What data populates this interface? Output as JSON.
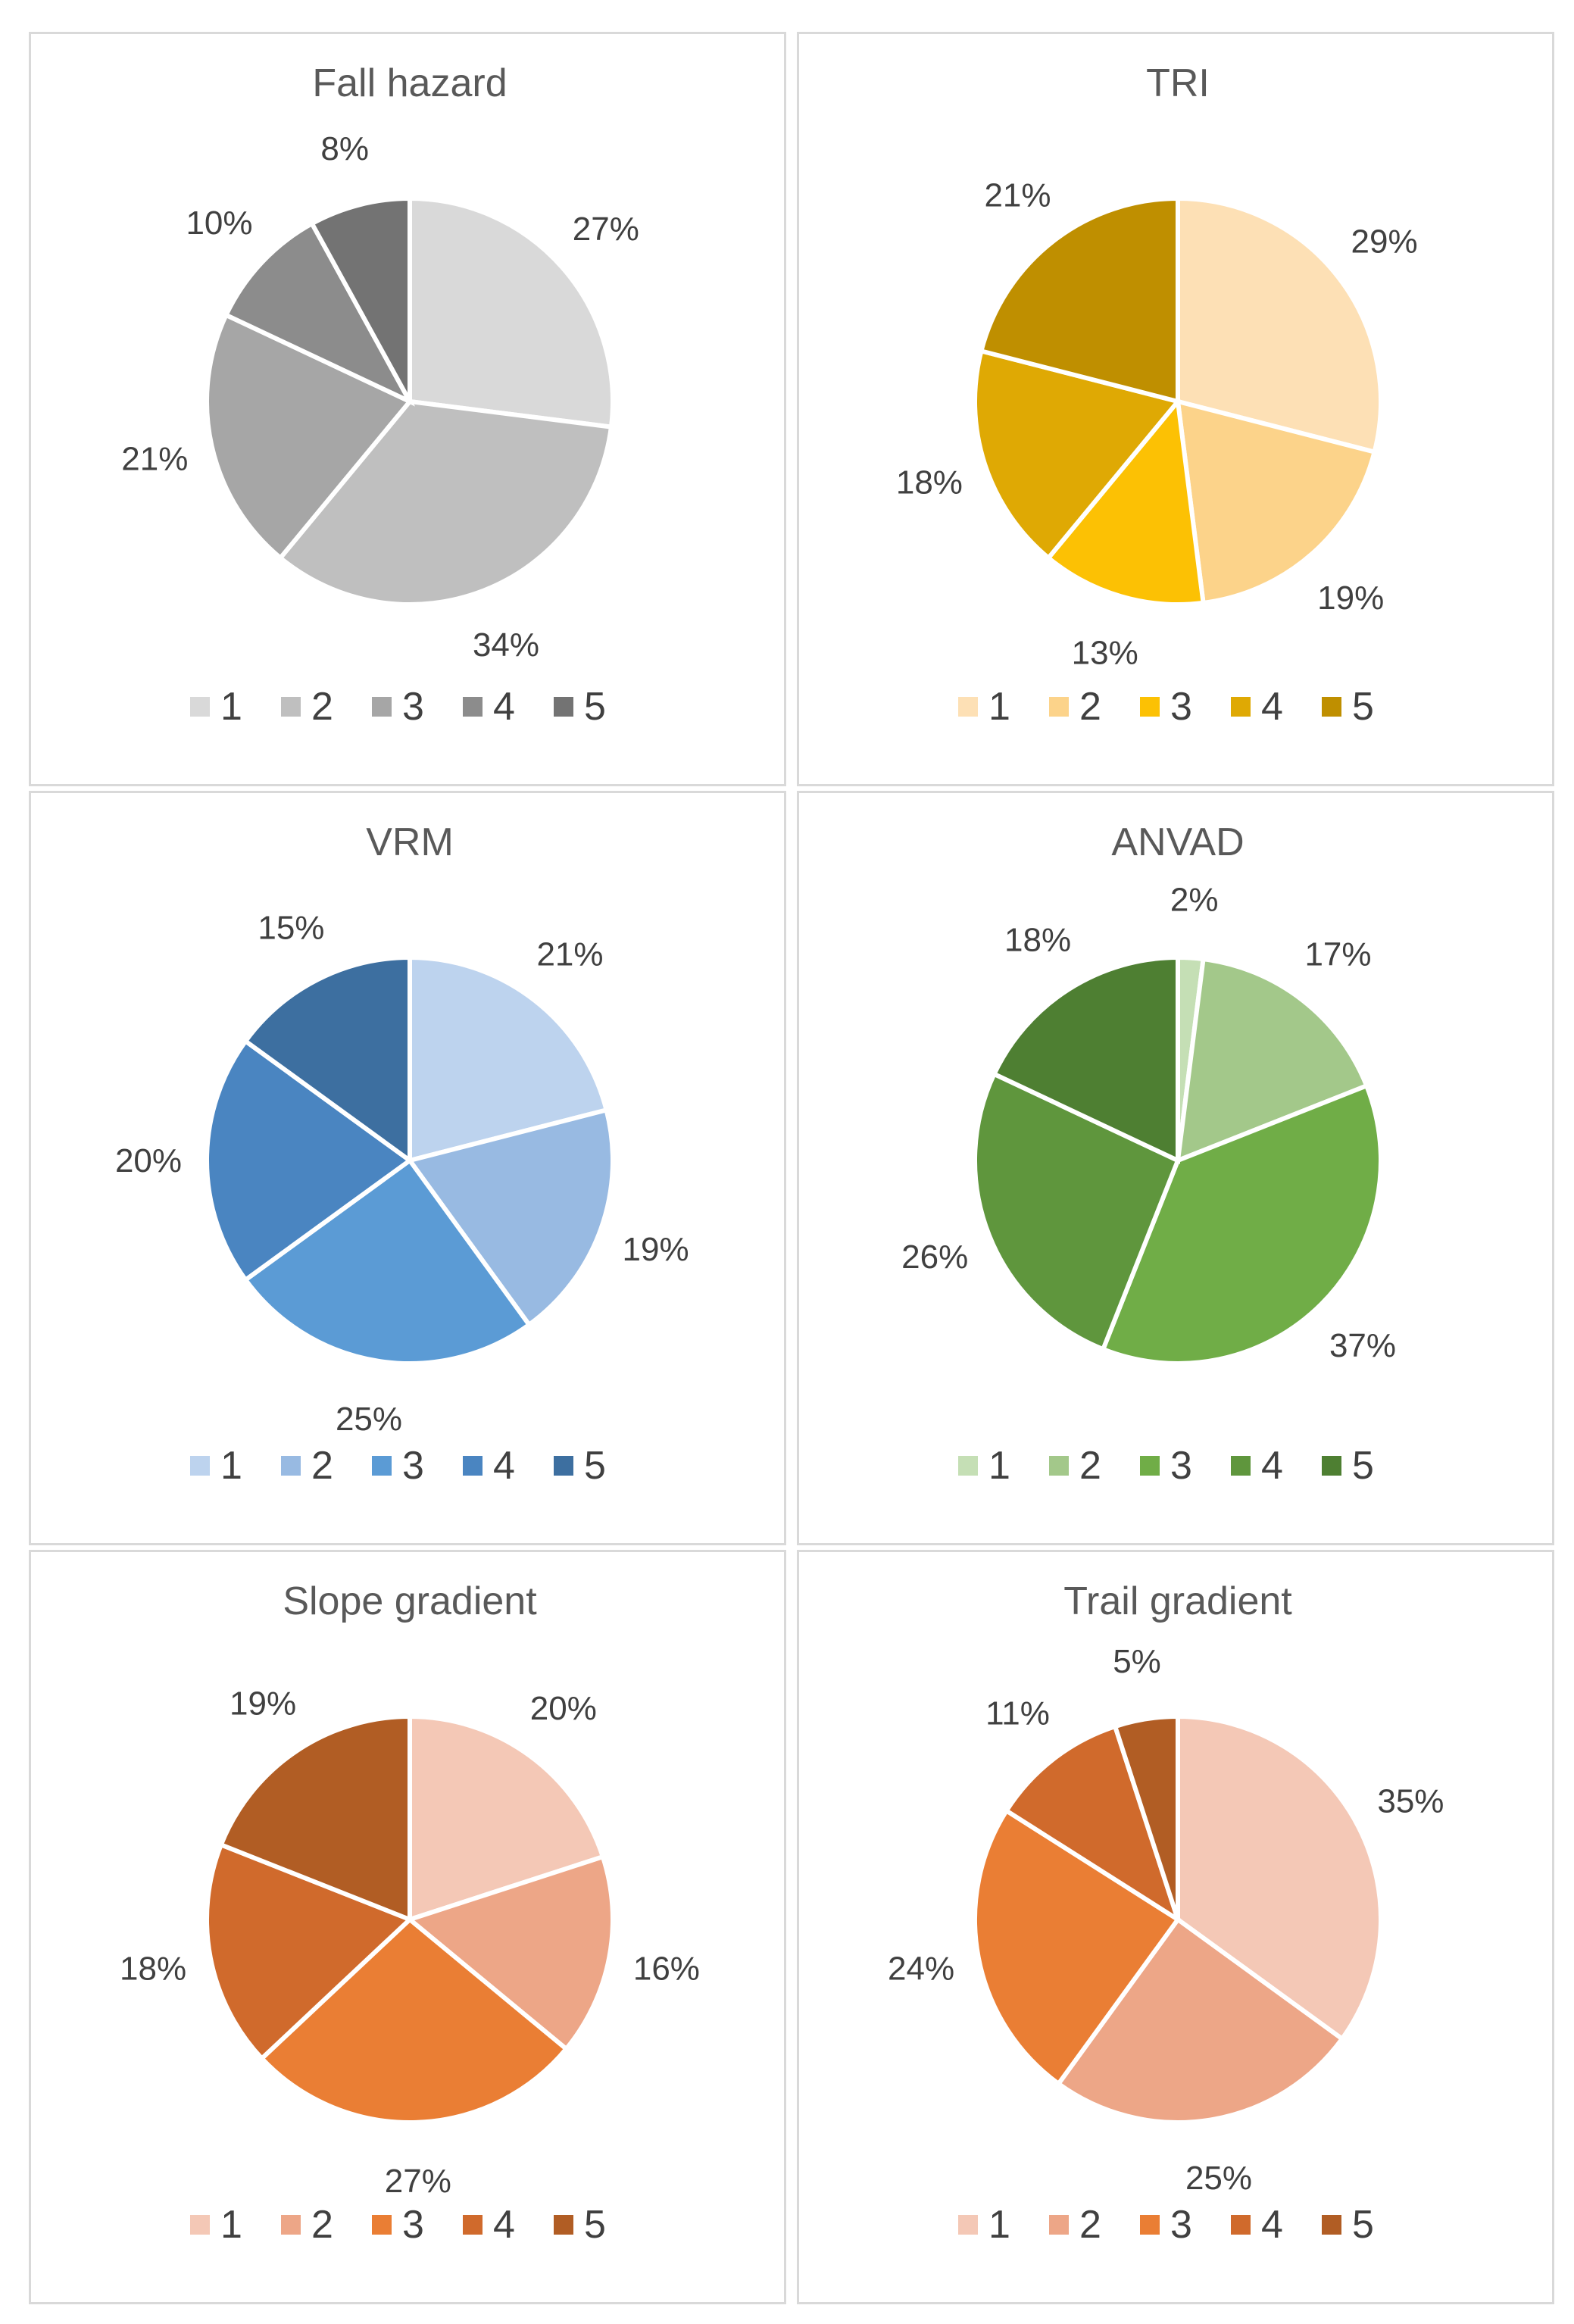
{
  "chart_data": [
    {
      "type": "pie",
      "title": "Fall hazard",
      "categories": [
        "1",
        "2",
        "3",
        "4",
        "5"
      ],
      "values": [
        27,
        34,
        21,
        10,
        8
      ],
      "labels": [
        "27%",
        "34%",
        "21%",
        "10%",
        "8%"
      ],
      "colors": [
        "#D9D9D9",
        "#BFBFBF",
        "#A6A6A6",
        "#8C8C8C",
        "#737373"
      ],
      "legend_position": "bottom"
    },
    {
      "type": "pie",
      "title": "TRI",
      "categories": [
        "1",
        "2",
        "3",
        "4",
        "5"
      ],
      "values": [
        29,
        19,
        13,
        18,
        21
      ],
      "labels": [
        "29%",
        "19%",
        "13%",
        "18%",
        "21%"
      ],
      "colors": [
        "#FDE0B5",
        "#FCD38A",
        "#FCC104",
        "#DFA904",
        "#BF8F00"
      ],
      "legend_position": "bottom"
    },
    {
      "type": "pie",
      "title": "VRM",
      "categories": [
        "1",
        "2",
        "3",
        "4",
        "5"
      ],
      "values": [
        21,
        19,
        25,
        20,
        15
      ],
      "labels": [
        "21%",
        "19%",
        "25%",
        "20%",
        "15%"
      ],
      "colors": [
        "#BDD3EE",
        "#98BAE2",
        "#5B9BD5",
        "#4A85C1",
        "#3D6FA0"
      ],
      "legend_position": "bottom"
    },
    {
      "type": "pie",
      "title": "ANVAD",
      "categories": [
        "1",
        "2",
        "3",
        "4",
        "5"
      ],
      "values": [
        2,
        17,
        37,
        26,
        18
      ],
      "labels": [
        "2%",
        "17%",
        "37%",
        "26%",
        "18%"
      ],
      "colors": [
        "#C5DFB5",
        "#A3C88A",
        "#70AD47",
        "#5F963D",
        "#4E7F32"
      ],
      "legend_position": "bottom"
    },
    {
      "type": "pie",
      "title": "Slope gradient",
      "categories": [
        "1",
        "2",
        "3",
        "4",
        "5"
      ],
      "values": [
        20,
        16,
        27,
        18,
        19
      ],
      "labels": [
        "20%",
        "16%",
        "27%",
        "18%",
        "19%"
      ],
      "colors": [
        "#F4C8B6",
        "#EDA687",
        "#EA7E34",
        "#D06A2C",
        "#B15D24"
      ],
      "legend_position": "bottom"
    },
    {
      "type": "pie",
      "title": "Trail gradient",
      "categories": [
        "1",
        "2",
        "3",
        "4",
        "5"
      ],
      "values": [
        35,
        25,
        24,
        11,
        5
      ],
      "labels": [
        "35%",
        "25%",
        "24%",
        "11%",
        "5%"
      ],
      "colors": [
        "#F4C8B6",
        "#EDA687",
        "#EA7E34",
        "#D06A2C",
        "#B15D24"
      ],
      "legend_position": "bottom"
    }
  ]
}
